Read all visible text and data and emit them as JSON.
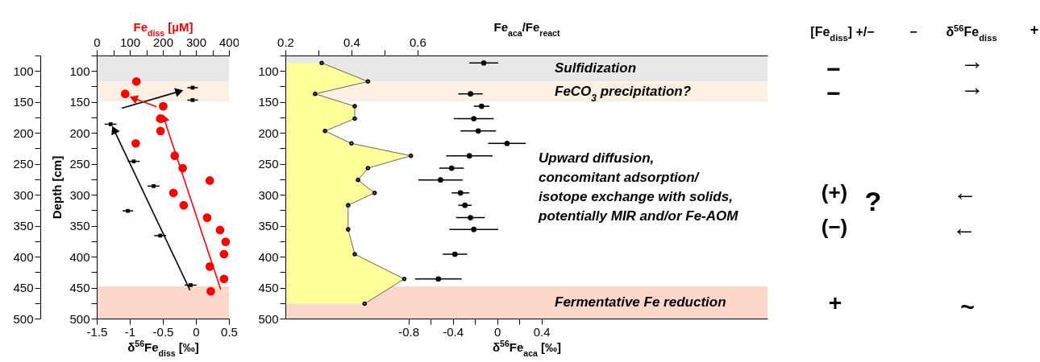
{
  "chart_data": [
    {
      "type": "scatter",
      "orientation": "horizontal",
      "xlabel": "δ$^{56}$Fe$_{diss}$ [‰]",
      "x2label": "Fe$_{diss}$ [µM]",
      "y2label": "Depth [cm]",
      "y2lim": [
        500,
        75
      ],
      "y2ticks": [
        {
          "value": 75,
          "label": null
        },
        100,
        {
          "value": 125,
          "label": null
        },
        150,
        {
          "value": 175,
          "label": null
        },
        200,
        {
          "value": 225,
          "label": null
        },
        250,
        {
          "value": 275,
          "label": null
        },
        300,
        {
          "value": 325,
          "label": null
        },
        350,
        {
          "value": 375,
          "label": null
        },
        400,
        {
          "value": 425,
          "label": null
        },
        450,
        {
          "value": 475,
          "label": null
        },
        500
      ],
      "xlim": [
        -1.5,
        0.5
      ],
      "xticks": [
        -1.5,
        -1,
        -0.5,
        0,
        0.5
      ],
      "x2lim": [
        0,
        400
      ],
      "x2ticks": [
        0,
        {
          "value": 50,
          "label": null
        },
        100,
        {
          "value": 150,
          "label": null
        },
        200,
        {
          "value": 250,
          "label": null
        },
        300,
        {
          "value": 350,
          "label": null
        },
        400
      ],
      "ylim": [
        500,
        75
      ],
      "yticks": [
        {
          "value": 75,
          "label": null
        },
        100,
        {
          "value": 125,
          "label": null
        },
        150,
        {
          "value": 175,
          "label": null
        },
        200,
        {
          "value": 225,
          "label": null
        },
        250,
        {
          "value": 275,
          "label": null
        },
        300,
        {
          "value": 325,
          "label": null
        },
        350,
        {
          "value": 375,
          "label": null
        },
        400,
        {
          "value": 425,
          "label": null
        },
        450,
        {
          "value": 475,
          "label": null
        },
        500
      ],
      "bands": [
        {
          "axis": "y",
          "from": 75,
          "to": 117,
          "color": "#e6e6e6"
        },
        {
          "axis": "y",
          "from": 118,
          "to": 149,
          "color": "#fdeee0"
        },
        {
          "axis": "y",
          "from": 448,
          "to": 500,
          "color": "#fdd2c6"
        }
      ],
      "series": [
        {
          "type": "scatter",
          "axis": "x2",
          "color": "#ff0000",
          "marker": "circle",
          "x": [
            117,
            137,
            157,
            177,
            197,
            217,
            237,
            257,
            277,
            297,
            317,
            337,
            357,
            376,
            396,
            416,
            436,
            456
          ],
          "values": [
            120,
            86,
            201,
            192,
            193,
            118,
            236,
            260,
            342,
            232,
            263,
            334,
            373,
            390,
            385,
            342,
            385,
            345
          ]
        },
        {
          "type": "scatter",
          "color": "#000000",
          "marker": "square",
          "x": [
            127,
            147,
            186,
            246,
            286,
            326,
            366,
            446
          ],
          "values": [
            -0.05,
            -0.05,
            -1.29,
            -0.94,
            -0.64,
            -1.03,
            -0.54,
            -0.08
          ],
          "errors": [
            0.08,
            0.08,
            0.09,
            0.09,
            0.09,
            0.08,
            0.09,
            0.09
          ]
        },
        {
          "type": "line",
          "color": "#000000",
          "x": [
            160,
            133
          ],
          "values": [
            -1.12,
            -0.25
          ]
        },
        {
          "type": "line",
          "axis": "x2",
          "color": "#ff0000",
          "x": [
            158,
            144
          ],
          "values": [
            181,
            111
          ]
        },
        {
          "type": "line",
          "color": "#000000",
          "x": [
            454,
            195
          ],
          "values": [
            -0.09,
            -1.24
          ]
        },
        {
          "type": "line",
          "axis": "x2",
          "color": "#ff0000",
          "x": [
            453,
            176
          ],
          "values": [
            375,
            203
          ]
        }
      ]
    },
    {
      "type": "scatter",
      "orientation": "horizontal",
      "xlabel": "δ$^{56}$Fe$_{aca}$ [‰]",
      "x2label": "Fe$_{aca}$/Fe$_{react}$",
      "xlim": [
        -1.91,
        2.44
      ],
      "xticks": [
        -0.8,
        {
          "value": -0.6,
          "label": null
        },
        -0.4,
        {
          "value": -0.2,
          "label": null
        },
        0,
        {
          "value": 0.2,
          "label": null
        },
        0.4
      ],
      "x2lim": [
        0.2,
        1.66
      ],
      "x2ticks": [
        0.2,
        {
          "value": 0.3,
          "label": null
        },
        0.4,
        {
          "value": 0.5,
          "label": null
        },
        0.6
      ],
      "ylim": [
        500,
        75
      ],
      "yticks": [
        {
          "value": 75,
          "label": null
        },
        100,
        {
          "value": 125,
          "label": null
        },
        150,
        {
          "value": 175,
          "label": null
        },
        200,
        {
          "value": 225,
          "label": null
        },
        250,
        {
          "value": 275,
          "label": null
        },
        300,
        {
          "value": 325,
          "label": null
        },
        350,
        {
          "value": 375,
          "label": null
        },
        400,
        {
          "value": 425,
          "label": null
        },
        450,
        {
          "value": 475,
          "label": null
        },
        500
      ],
      "bands": [
        {
          "axis": "y",
          "from": 75,
          "to": 117,
          "color": "#e6e6e6",
          "label": "Sulfidization"
        },
        {
          "axis": "y",
          "from": 118,
          "to": 149,
          "color": "#fdeee0",
          "label": "FeCO$_{3}$ precipitation?"
        },
        {
          "axis": "y",
          "from": 448,
          "to": 500,
          "color": "#fdd2c6",
          "label": "Fermentative Fe reduction"
        }
      ],
      "annotations": [
        "Upward diffusion,\nconcomitant adsorption/\nisotope exchange with solids,\npotentially MIR and/or Fe-AOM"
      ],
      "series": [
        {
          "type": "area",
          "axis": "x2",
          "color": "#ffff99",
          "marker": "circle",
          "x": [
            87,
            117,
            137,
            157,
            177,
            197,
            217,
            237,
            257,
            276,
            297,
            317,
            356,
            396,
            436,
            476
          ],
          "values": [
            0.31,
            0.45,
            0.29,
            0.41,
            0.41,
            0.32,
            0.4,
            0.58,
            0.45,
            0.42,
            0.47,
            0.39,
            0.39,
            0.41,
            0.56,
            0.44
          ]
        },
        {
          "type": "scatter",
          "color": "#000000",
          "marker": "circle",
          "x": [
            87,
            137,
            157,
            177,
            197,
            217,
            237,
            257,
            276,
            297,
            317,
            337,
            356,
            396,
            436
          ],
          "values": [
            -0.12,
            -0.24,
            -0.14,
            -0.21,
            -0.17,
            0.09,
            -0.25,
            -0.41,
            -0.51,
            -0.33,
            -0.29,
            -0.24,
            -0.21,
            -0.38,
            -0.53
          ],
          "errors": [
            0.13,
            0.11,
            0.07,
            0.18,
            0.16,
            0.17,
            0.21,
            0.11,
            0.2,
            0.08,
            0.06,
            0.13,
            0.22,
            0.11,
            0.21
          ]
        }
      ]
    },
    {
      "type": "other",
      "annotations": [
        "[Fe$_{diss}$] +/−",
        "−",
        "δ$^{56}$Fe$_{diss}$",
        "+",
        "−",
        "→",
        "−",
        "→",
        "(+)",
        "?",
        "←",
        "(−)",
        "←",
        "+",
        "~"
      ]
    }
  ]
}
